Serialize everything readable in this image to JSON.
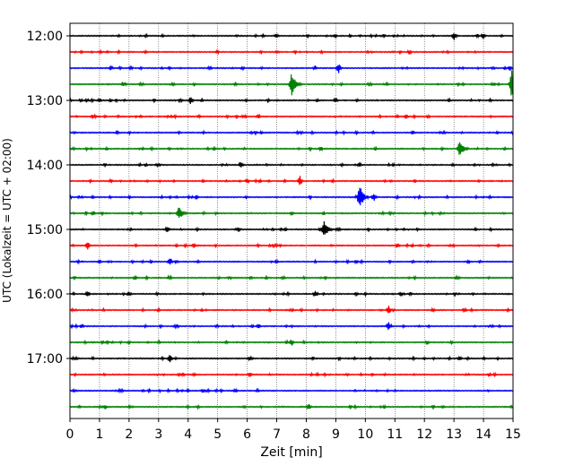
{
  "chart_data": {
    "type": "line",
    "title": "",
    "xlabel": "Zeit  [min]",
    "ylabel": "UTC (Lokalzeit = UTC + 02:00)",
    "xlim": [
      0,
      15
    ],
    "x_ticks": [
      0,
      1,
      2,
      3,
      4,
      5,
      6,
      7,
      8,
      9,
      10,
      11,
      12,
      13,
      14,
      15
    ],
    "x_tick_labels": [
      "0",
      "1",
      "2",
      "3",
      "4",
      "5",
      "6",
      "7",
      "8",
      "9",
      "10",
      "11",
      "12",
      "13",
      "14",
      "15"
    ],
    "y_ticks": [
      "12:00",
      "13:00",
      "14:00",
      "15:00",
      "16:00",
      "17:00"
    ],
    "grid": "vertical dotted",
    "colors": [
      "#000000",
      "#ff0000",
      "#0000ff",
      "#008000"
    ],
    "traces": [
      {
        "start": "12:00",
        "color": "#000000",
        "events": [
          [
            13.0,
            5
          ],
          [
            14.0,
            4
          ],
          [
            7.0,
            3
          ],
          [
            9.0,
            2.5
          ]
        ]
      },
      {
        "start": "12:15",
        "color": "#ff0000",
        "events": [
          [
            11.5,
            3
          ],
          [
            5.0,
            2.5
          ]
        ]
      },
      {
        "start": "12:30",
        "color": "#0000ff",
        "events": [
          [
            9.1,
            6
          ],
          [
            1.4,
            3
          ],
          [
            8.3,
            3
          ],
          [
            14.9,
            3
          ]
        ]
      },
      {
        "start": "12:45",
        "color": "#008000",
        "events": [
          [
            7.5,
            14
          ],
          [
            14.95,
            16
          ],
          [
            1.8,
            3
          ],
          [
            3.5,
            2.5
          ]
        ]
      },
      {
        "start": "13:00",
        "color": "#000000",
        "events": [
          [
            4.1,
            5
          ],
          [
            1.0,
            3
          ],
          [
            9.0,
            3
          ]
        ]
      },
      {
        "start": "13:15",
        "color": "#ff0000",
        "events": [
          [
            6.4,
            3
          ],
          [
            11.4,
            3
          ]
        ]
      },
      {
        "start": "13:30",
        "color": "#0000ff",
        "events": [
          [
            1.6,
            2.5
          ],
          [
            11.6,
            2.5
          ]
        ]
      },
      {
        "start": "13:45",
        "color": "#008000",
        "events": [
          [
            13.2,
            10
          ],
          [
            8.5,
            3
          ],
          [
            4.9,
            2.5
          ]
        ]
      },
      {
        "start": "14:00",
        "color": "#000000",
        "events": [
          [
            5.8,
            4
          ],
          [
            9.8,
            3
          ],
          [
            3.0,
            2.5
          ]
        ]
      },
      {
        "start": "14:15",
        "color": "#ff0000",
        "events": [
          [
            7.8,
            6
          ],
          [
            6.0,
            3
          ],
          [
            1.4,
            2.5
          ]
        ]
      },
      {
        "start": "14:30",
        "color": "#0000ff",
        "events": [
          [
            9.8,
            14
          ],
          [
            10.3,
            5
          ],
          [
            4.3,
            2.5
          ]
        ]
      },
      {
        "start": "14:45",
        "color": "#008000",
        "events": [
          [
            3.7,
            8
          ],
          [
            0.8,
            3
          ],
          [
            7.5,
            2.5
          ]
        ]
      },
      {
        "start": "15:00",
        "color": "#000000",
        "events": [
          [
            8.6,
            10
          ],
          [
            3.3,
            4
          ],
          [
            5.7,
            3
          ]
        ]
      },
      {
        "start": "15:15",
        "color": "#ff0000",
        "events": [
          [
            0.6,
            5
          ],
          [
            4.2,
            3
          ],
          [
            11.1,
            3
          ]
        ]
      },
      {
        "start": "15:30",
        "color": "#0000ff",
        "events": [
          [
            3.4,
            5
          ],
          [
            1.0,
            2.5
          ],
          [
            9.7,
            2.5
          ]
        ]
      },
      {
        "start": "15:45",
        "color": "#008000",
        "events": [
          [
            2.2,
            3
          ],
          [
            7.2,
            2.5
          ]
        ]
      },
      {
        "start": "16:00",
        "color": "#000000",
        "events": [
          [
            0.6,
            4
          ],
          [
            8.3,
            4
          ],
          [
            11.2,
            3
          ],
          [
            2.0,
            2.5
          ]
        ]
      },
      {
        "start": "16:15",
        "color": "#ff0000",
        "events": [
          [
            10.8,
            5
          ],
          [
            12.3,
            2.5
          ]
        ]
      },
      {
        "start": "16:30",
        "color": "#0000ff",
        "events": [
          [
            10.8,
            6
          ],
          [
            0.4,
            3
          ],
          [
            6.4,
            3
          ]
        ]
      },
      {
        "start": "16:45",
        "color": "#008000",
        "events": [
          [
            7.5,
            4
          ],
          [
            12.1,
            2.5
          ]
        ]
      },
      {
        "start": "17:00",
        "color": "#000000",
        "events": [
          [
            3.4,
            5
          ],
          [
            6.1,
            3
          ],
          [
            13.2,
            3
          ]
        ]
      },
      {
        "start": "17:15",
        "color": "#ff0000",
        "events": [
          [
            6.1,
            3
          ],
          [
            14.2,
            2.5
          ]
        ]
      },
      {
        "start": "17:30",
        "color": "#0000ff",
        "events": [
          [
            4.5,
            2.5
          ],
          [
            5.6,
            2.5
          ]
        ]
      },
      {
        "start": "17:45",
        "color": "#008000",
        "events": [
          [
            8.1,
            4
          ],
          [
            1.2,
            2.5
          ]
        ]
      }
    ]
  }
}
